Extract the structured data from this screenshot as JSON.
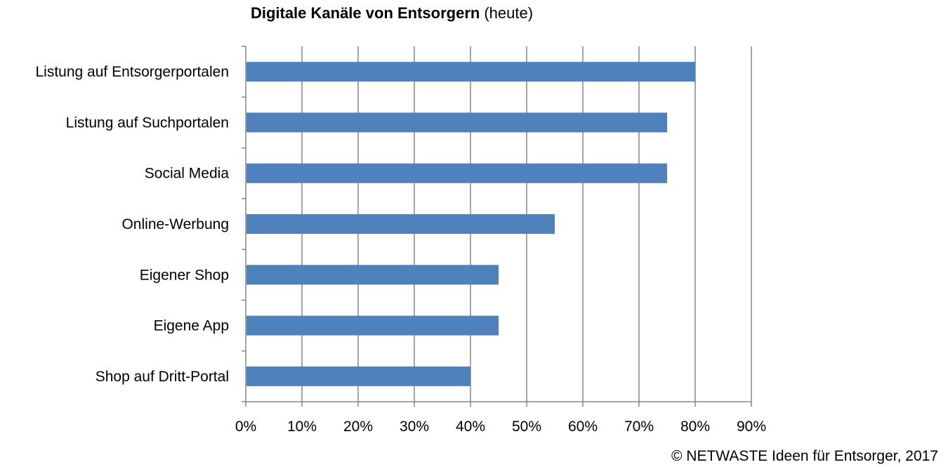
{
  "chart_data": {
    "type": "bar",
    "orientation": "horizontal",
    "title": "Digitale Kanäle von Entsorgern",
    "title_suffix": "(heute)",
    "categories": [
      "Listung auf Entsorgerportalen",
      "Listung auf Suchportalen",
      "Social Media",
      "Online-Werbung",
      "Eigener Shop",
      "Eigene App",
      "Shop auf Dritt-Portal"
    ],
    "values": [
      0.8,
      0.75,
      0.75,
      0.55,
      0.45,
      0.45,
      0.4
    ],
    "xlim": [
      0,
      0.9
    ],
    "x_ticks": [
      "0%",
      "10%",
      "20%",
      "30%",
      "40%",
      "50%",
      "60%",
      "70%",
      "80%",
      "90%"
    ],
    "grid": "vertical",
    "bar_color": "#4f81bd",
    "gridline_color": "#868686"
  },
  "footer": "© NETWASTE Ideen für Entsorger, 2017"
}
